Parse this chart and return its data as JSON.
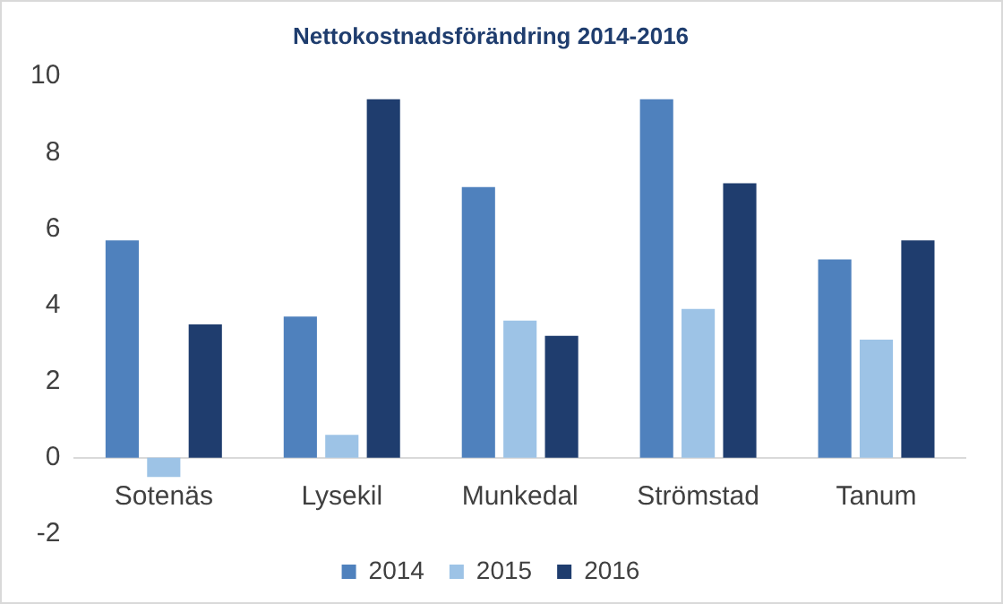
{
  "chart_data": {
    "type": "bar",
    "title": "Nettokostnadsförändring 2014-2016",
    "categories": [
      "Sotenäs",
      "Lysekil",
      "Munkedal",
      "Strömstad",
      "Tanum"
    ],
    "series": [
      {
        "name": "2014",
        "color": "#4f81bd",
        "values": [
          5.7,
          3.7,
          7.1,
          9.4,
          5.2
        ]
      },
      {
        "name": "2015",
        "color": "#9dc3e6",
        "values": [
          -0.5,
          0.6,
          3.6,
          3.9,
          3.1
        ]
      },
      {
        "name": "2016",
        "color": "#1f3d6e",
        "values": [
          3.5,
          9.4,
          3.2,
          7.2,
          5.7
        ]
      }
    ],
    "ylim": [
      -2,
      10
    ],
    "yticks": [
      -2,
      0,
      2,
      4,
      6,
      8,
      10
    ],
    "grid": false,
    "legend": "bottom"
  }
}
